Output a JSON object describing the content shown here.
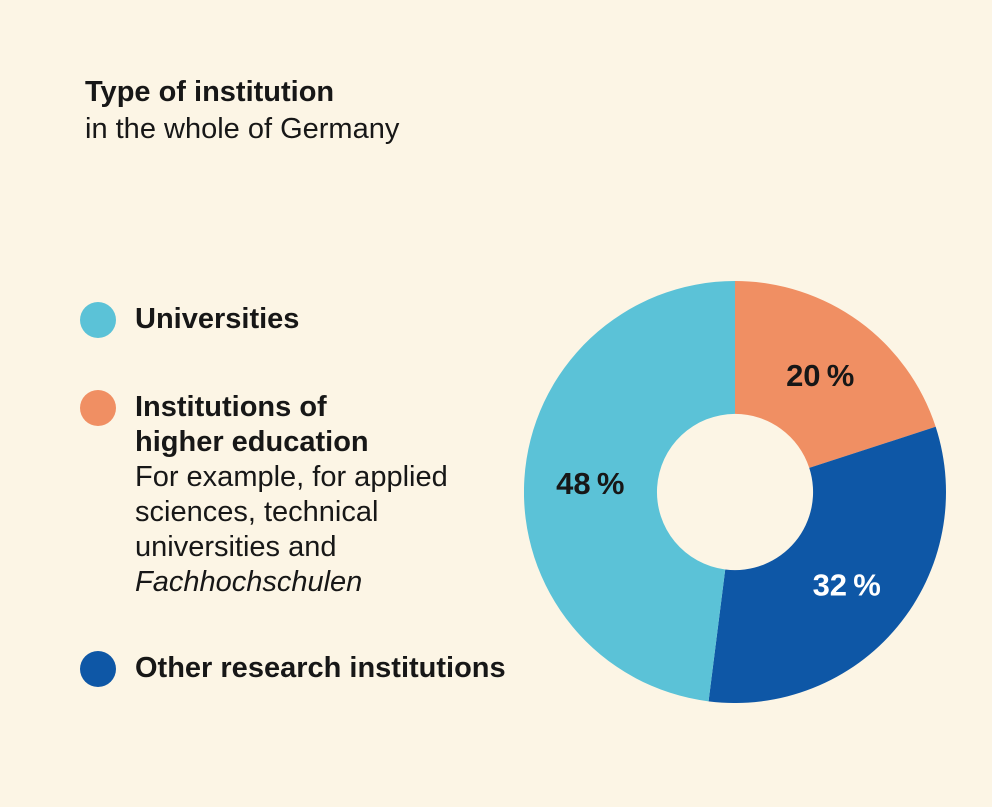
{
  "page": {
    "background_color": "#FCF5E5",
    "text_color": "#171717"
  },
  "header": {
    "title": "Type of institution",
    "subtitle": "in the whole of Germany"
  },
  "legend": {
    "items": [
      {
        "id": "universities",
        "swatch_color": "#5BC2D7",
        "title_lines": [
          "Universities"
        ]
      },
      {
        "id": "higher-education",
        "swatch_color": "#F08F63",
        "title_lines": [
          "Institutions of",
          "higher education"
        ],
        "desc_lines": [
          "For example, for applied",
          "sciences, technical",
          "universities and"
        ],
        "desc_italic": "Fachhochschulen"
      },
      {
        "id": "other-research",
        "swatch_color": "#0E57A6",
        "title_lines": [
          "Other research institutions"
        ]
      }
    ]
  },
  "chart_data": {
    "type": "pie",
    "variant": "donut",
    "title": "Type of institution",
    "subtitle": "in the whole of Germany",
    "start_angle_deg": 0,
    "direction": "clockwise",
    "inner_radius_ratio": 0.37,
    "label_radius_ratio": 0.687,
    "segments": [
      {
        "name": "Institutions of higher education",
        "value_pct": 20,
        "label": "20 %",
        "color": "#F08F63",
        "label_color": "#171717"
      },
      {
        "name": "Other research institutions",
        "value_pct": 32,
        "label": "32 %",
        "color": "#0E57A6",
        "label_color": "#FFFFFF"
      },
      {
        "name": "Universities",
        "value_pct": 48,
        "label": "48 %",
        "color": "#5BC2D7",
        "label_color": "#171717"
      }
    ]
  }
}
